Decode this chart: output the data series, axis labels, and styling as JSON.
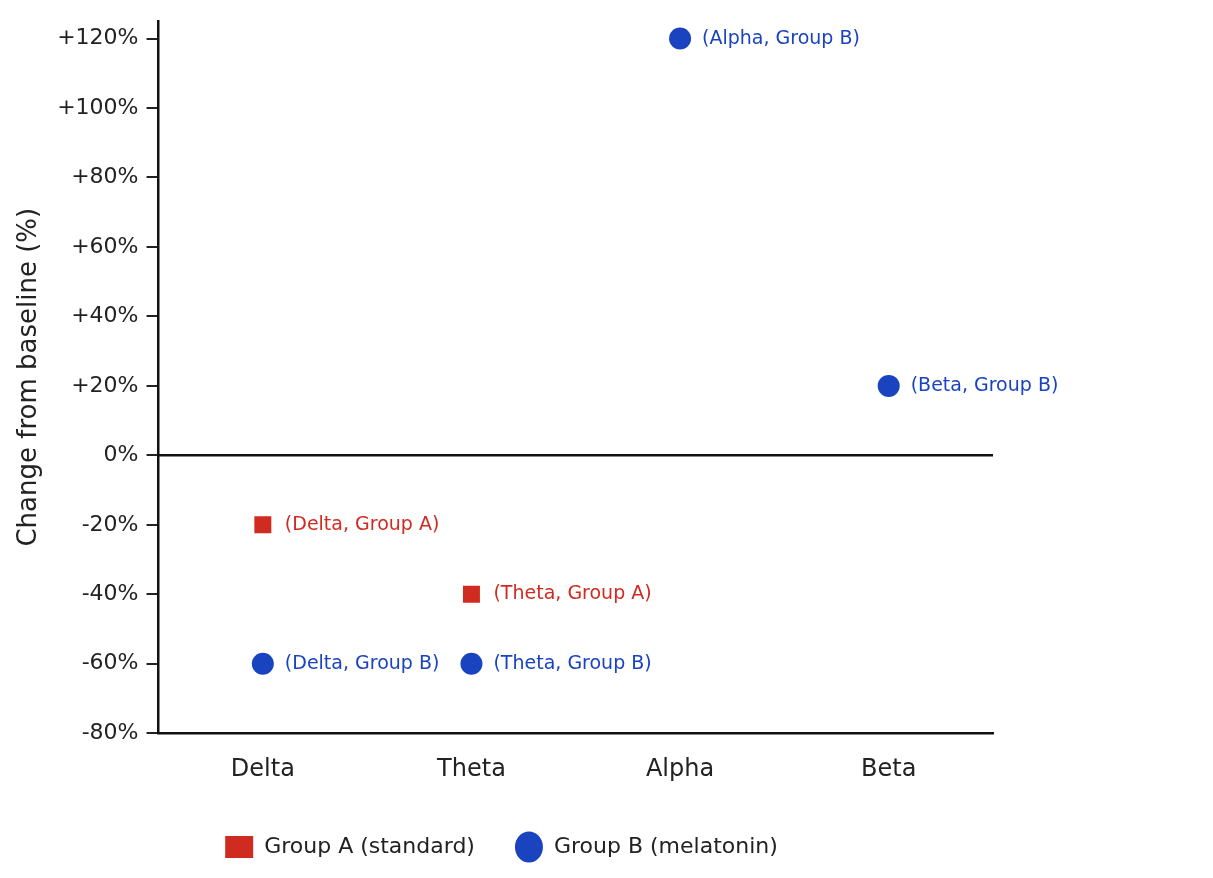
{
  "chart_data": {
    "type": "scatter",
    "ylabel": "Change from baseline (%)",
    "categories": [
      "Delta",
      "Theta",
      "Alpha",
      "Beta"
    ],
    "series": [
      {
        "name": "Group A (standard)",
        "color": "#d02b20",
        "marker": "square",
        "x": [
          "Delta",
          "Theta"
        ],
        "values": [
          -20,
          -40
        ]
      },
      {
        "name": "Group B (melatonin)",
        "color": "#1a43c0",
        "marker": "circle",
        "x": [
          "Delta",
          "Theta",
          "Alpha",
          "Beta"
        ],
        "values": [
          -60,
          -60,
          120,
          20
        ]
      }
    ],
    "ylim": [
      -80,
      125
    ],
    "yticks": [
      {
        "value": -80,
        "label": "-80%"
      },
      {
        "value": -60,
        "label": "-60%"
      },
      {
        "value": -40,
        "label": "-40%"
      },
      {
        "value": -20,
        "label": "-20%"
      },
      {
        "value": 0,
        "label": "0%"
      },
      {
        "value": 20,
        "label": "+20%"
      },
      {
        "value": 40,
        "label": "+40%"
      },
      {
        "value": 60,
        "label": "+60%"
      },
      {
        "value": 80,
        "label": "+80%"
      },
      {
        "value": 100,
        "label": "+100%"
      },
      {
        "value": 120,
        "label": "+120%"
      }
    ],
    "ref_lines": [
      {
        "axis": "y",
        "value": 0,
        "color": "#111111"
      }
    ],
    "annotations": [
      {
        "text": "(Delta, Group A)",
        "x": "Delta",
        "y": -20
      },
      {
        "text": "(Theta, Group A)",
        "x": "Theta",
        "y": -40
      },
      {
        "text": "(Delta, Group B)",
        "x": "Delta",
        "y": -60
      },
      {
        "text": "(Theta, Group B)",
        "x": "Theta",
        "y": -60
      },
      {
        "text": "(Alpha, Group B)",
        "x": "Alpha",
        "y": 120
      },
      {
        "text": "(Beta, Group B)",
        "x": "Beta",
        "y": 20
      }
    ],
    "grid": false,
    "legend": "bottom"
  }
}
